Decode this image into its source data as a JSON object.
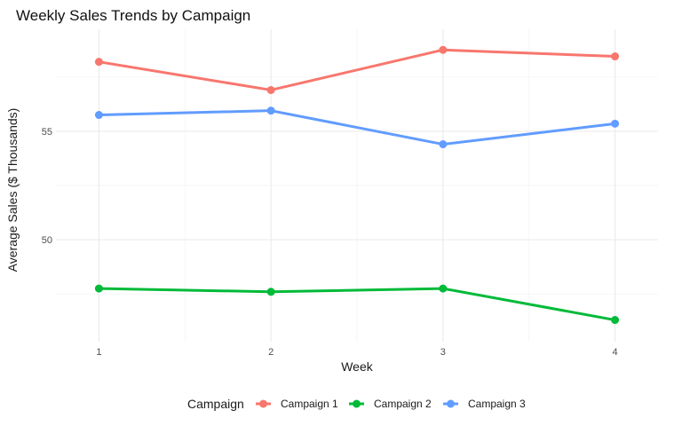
{
  "chart_data": {
    "type": "line",
    "title": "Weekly Sales Trends by Campaign",
    "xlabel": "Week",
    "ylabel": "Average Sales ($ Thousands)",
    "x": [
      1,
      2,
      3,
      4
    ],
    "x_tick_labels": [
      "1",
      "2",
      "3",
      "4"
    ],
    "y_ticks": [
      50,
      55
    ],
    "y_tick_labels": [
      "50",
      "55"
    ],
    "xlim": [
      0.75,
      4.25
    ],
    "ylim": [
      45.3,
      59.7
    ],
    "grid": true,
    "legend": {
      "title": "Campaign",
      "position": "bottom"
    },
    "series": [
      {
        "name": "Campaign 1",
        "color": "#F8766D",
        "values": [
          58.2,
          56.9,
          58.75,
          58.45
        ]
      },
      {
        "name": "Campaign 2",
        "color": "#00BA38",
        "values": [
          47.75,
          47.6,
          47.75,
          46.3
        ]
      },
      {
        "name": "Campaign 3",
        "color": "#619CFF",
        "values": [
          55.75,
          55.95,
          54.4,
          55.35
        ]
      }
    ]
  }
}
